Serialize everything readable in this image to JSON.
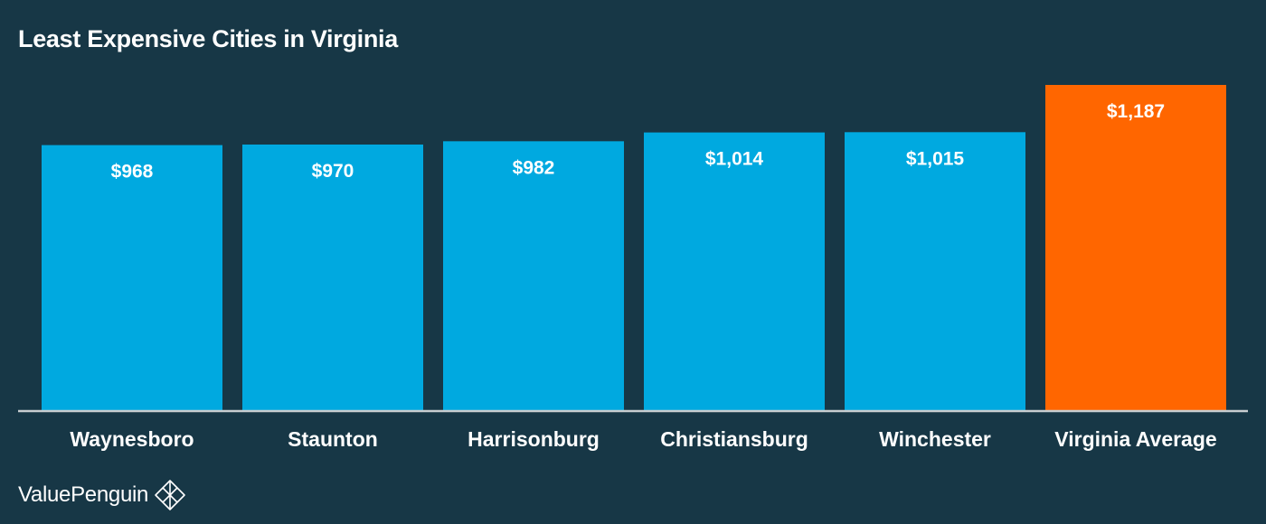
{
  "chart_data": {
    "type": "bar",
    "title": "Least Expensive Cities in Virginia",
    "categories": [
      "Waynesboro",
      "Staunton",
      "Harrisonburg",
      "Christiansburg",
      "Winchester",
      "Virginia Average"
    ],
    "values": [
      968,
      970,
      982,
      1014,
      1015,
      1187
    ],
    "value_labels": [
      "$968",
      "$970",
      "$982",
      "$1,014",
      "$1,015",
      "$1,187"
    ],
    "colors": [
      "#00a9e0",
      "#00a9e0",
      "#00a9e0",
      "#00a9e0",
      "#00a9e0",
      "#ff6600"
    ],
    "xlabel": "",
    "ylabel": "",
    "ylim": [
      0,
      1187
    ],
    "grid": false,
    "legend": false
  },
  "brand": {
    "name": "ValuePenguin",
    "logo_icon": "penguin-logo-icon"
  },
  "colors": {
    "background": "#173746",
    "baseline": "#c8cdd0",
    "text": "#ffffff"
  }
}
